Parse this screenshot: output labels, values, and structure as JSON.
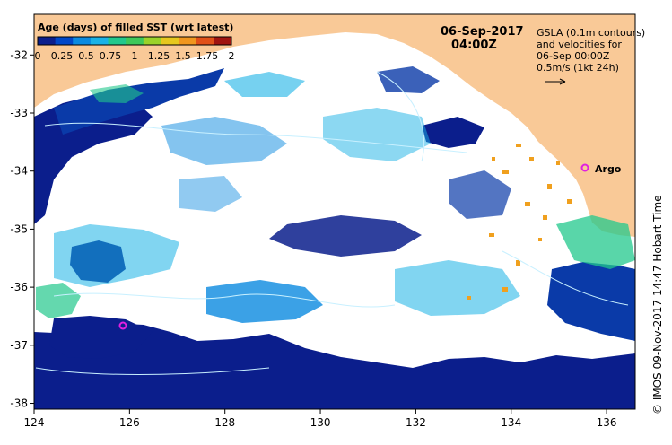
{
  "title": {
    "date": "06-Sep-2017",
    "time": "04:00Z"
  },
  "colorbar": {
    "label": "Age (days) of filled SST (wrt latest)",
    "ticks": [
      "0",
      "0.25",
      "0.5",
      "0.75",
      "1",
      "1.25",
      "1.5",
      "1.75",
      "2"
    ],
    "min": 0,
    "max": 2,
    "colors": [
      "#0b1e8c",
      "#0047c8",
      "#0a8ae0",
      "#1ab2e6",
      "#22c88c",
      "#3ec85a",
      "#9ad22a",
      "#e6c81e",
      "#f0961e",
      "#e05018",
      "#a01410"
    ]
  },
  "gsla_note": {
    "lines": [
      "GSLA (0.1m contours)",
      "and velocities for",
      "06-Sep 00:00Z",
      "0.5m/s (1kt 24h)"
    ]
  },
  "argo_label": "Argo",
  "credit": "© IMOS 09-Nov-2017 14:47 Hobart Time",
  "axes": {
    "x_ticks": [
      "124",
      "126",
      "128",
      "130",
      "132",
      "134",
      "136"
    ],
    "y_ticks": [
      "-32",
      "-33",
      "-34",
      "-35",
      "-36",
      "-37",
      "-38"
    ],
    "x_range": [
      124,
      136.6
    ],
    "y_range": [
      -38.1,
      -31.3
    ]
  },
  "colors": {
    "land": "#f9c997",
    "ocean_white": "#ffffff",
    "argo_marker": "#e020e0",
    "frame": "#000000"
  }
}
